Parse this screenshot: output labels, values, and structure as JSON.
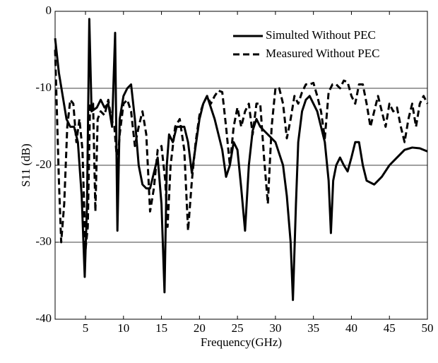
{
  "chart_data": {
    "type": "line",
    "xlabel": "Frequency(GHz)",
    "ylabel": "S11 (dB)",
    "xlim": [
      1,
      50
    ],
    "ylim": [
      -40,
      0
    ],
    "xticks": [
      5,
      10,
      15,
      20,
      25,
      30,
      35,
      40,
      45,
      50
    ],
    "yticks": [
      -40,
      -30,
      -20,
      -10,
      0
    ],
    "grid": "y",
    "legend": "upper right",
    "series": [
      {
        "name": "Simulted Without PEC",
        "color": "#000000",
        "dash": "solid",
        "x": [
          1,
          1.5,
          2,
          2.5,
          3,
          3.5,
          4,
          4.5,
          4.9,
          5.2,
          5.5,
          5.8,
          6.5,
          7,
          7.5,
          8,
          8.5,
          8.9,
          9.2,
          9.5,
          10,
          10.5,
          11,
          11.5,
          12,
          12.5,
          13,
          13.5,
          14,
          14.5,
          15,
          15.4,
          15.7,
          16,
          16.5,
          17,
          17.5,
          18,
          18.5,
          19,
          20,
          20.5,
          21,
          22,
          23,
          23.5,
          24,
          24.5,
          25,
          25.5,
          26,
          26.5,
          27,
          27.5,
          28,
          29,
          30,
          31,
          31.5,
          32,
          32.3,
          32.7,
          33,
          33.5,
          34,
          34.5,
          35,
          35.5,
          36,
          36.5,
          37,
          37.3,
          37.6,
          38,
          38.5,
          39,
          39.5,
          40,
          40.5,
          41,
          41.5,
          42,
          43,
          44,
          45,
          46,
          47,
          48,
          49,
          50
        ],
        "values": [
          -3.5,
          -8,
          -11,
          -14,
          -15,
          -15,
          -17,
          -24,
          -34.5,
          -25,
          -1,
          -13,
          -12.5,
          -11.5,
          -12.5,
          -12,
          -15,
          -2.8,
          -28.5,
          -14,
          -11,
          -10,
          -9.5,
          -14,
          -20,
          -22.5,
          -23,
          -23,
          -21,
          -19,
          -25,
          -36.5,
          -20,
          -16,
          -17,
          -15,
          -15,
          -15,
          -17,
          -21,
          -14,
          -12,
          -11,
          -14,
          -18,
          -21.5,
          -20,
          -17,
          -18,
          -23,
          -28.5,
          -20,
          -15.5,
          -14,
          -15,
          -16,
          -17,
          -20,
          -24,
          -30,
          -37.5,
          -25,
          -17,
          -13,
          -11.5,
          -11,
          -12,
          -13,
          -15,
          -17,
          -22,
          -28.8,
          -22,
          -20,
          -19,
          -20,
          -20.8,
          -19,
          -17,
          -17,
          -20,
          -22,
          -22.5,
          -21.5,
          -20,
          -19,
          -18,
          -17.7,
          -17.8,
          -18.2
        ]
      },
      {
        "name": "Measured Without PEC",
        "color": "#000000",
        "dash": "dashed",
        "x": [
          1,
          1.5,
          1.8,
          2.2,
          2.6,
          3,
          3.4,
          3.8,
          4.2,
          4.6,
          5,
          5.3,
          5.6,
          6,
          6.3,
          6.6,
          7,
          7.5,
          8,
          8.4,
          8.8,
          9.2,
          9.5,
          10,
          10.5,
          11,
          11.5,
          12,
          12.5,
          13,
          13.5,
          14,
          14.5,
          15,
          15.5,
          15.8,
          16.2,
          16.8,
          17.4,
          18,
          18.5,
          19,
          19.5,
          20,
          20.5,
          21,
          21.5,
          22,
          22.5,
          23,
          23.5,
          24,
          24.5,
          25,
          25.5,
          26,
          26.5,
          27,
          27.5,
          28,
          28.5,
          29,
          29.5,
          30,
          30.5,
          31,
          31.5,
          32,
          32.5,
          33,
          33.5,
          34,
          34.5,
          35,
          35.5,
          36,
          36.5,
          37,
          37.5,
          38,
          38.5,
          39,
          39.5,
          40,
          40.5,
          41,
          41.5,
          42,
          42.5,
          43,
          43.5,
          44,
          44.5,
          45,
          45.5,
          46,
          46.5,
          47,
          47.5,
          48,
          48.5,
          49,
          49.5,
          50
        ],
        "values": [
          -5,
          -22,
          -30,
          -25,
          -15,
          -11.5,
          -12,
          -17,
          -14,
          -18,
          -31,
          -28,
          -12,
          -12,
          -26,
          -14,
          -13,
          -13.5,
          -11.5,
          -14,
          -15,
          -20,
          -16,
          -12,
          -11.5,
          -13,
          -17.5,
          -15,
          -13,
          -16,
          -26,
          -23,
          -18,
          -17.5,
          -22,
          -28,
          -20,
          -15,
          -14,
          -18,
          -28.5,
          -22,
          -17,
          -13.5,
          -12,
          -11,
          -12,
          -11,
          -10.3,
          -10.5,
          -15,
          -20,
          -15,
          -12.5,
          -15,
          -13,
          -12,
          -16,
          -12,
          -12,
          -19,
          -25,
          -15,
          -10,
          -10,
          -12,
          -16.5,
          -14,
          -11,
          -12,
          -10.5,
          -9.5,
          -9.5,
          -9.3,
          -11,
          -13,
          -16.5,
          -10.5,
          -9.5,
          -9.5,
          -10,
          -9,
          -9.2,
          -11,
          -12,
          -9.5,
          -9.5,
          -12,
          -15,
          -13,
          -11,
          -13,
          -15,
          -12,
          -13,
          -12.5,
          -15,
          -17,
          -14,
          -12,
          -15,
          -12,
          -11,
          -12
        ]
      }
    ]
  }
}
